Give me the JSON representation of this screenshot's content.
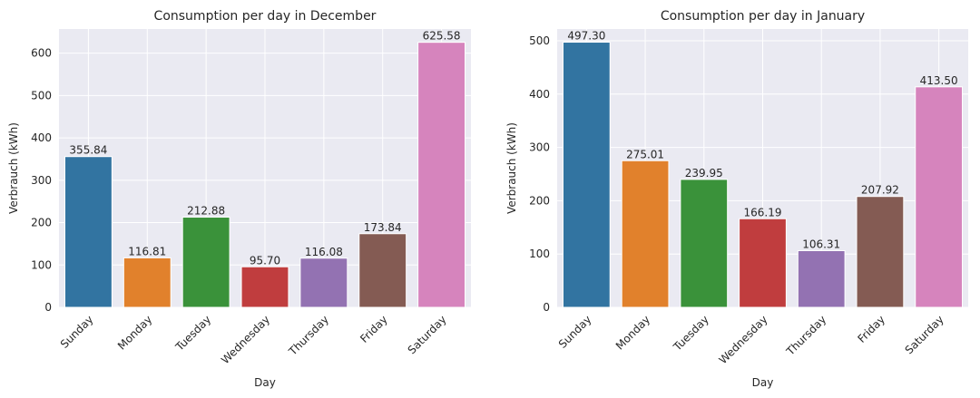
{
  "chart_data": [
    {
      "type": "bar",
      "title": "Consumption per day in December",
      "xlabel": "Day",
      "ylabel": "Verbrauch (kWh)",
      "categories": [
        "Sunday",
        "Monday",
        "Tuesday",
        "Wednesday",
        "Thursday",
        "Friday",
        "Saturday"
      ],
      "values": [
        355.84,
        116.81,
        212.88,
        95.7,
        116.08,
        173.84,
        625.58
      ],
      "value_labels": [
        "355.84",
        "116.81",
        "212.88",
        "95.70",
        "116.08",
        "173.84",
        "625.58"
      ],
      "ylim": [
        0,
        657
      ],
      "yticks": [
        0,
        100,
        200,
        300,
        400,
        500,
        600
      ],
      "grid": true
    },
    {
      "type": "bar",
      "title": "Consumption per day in January",
      "xlabel": "Day",
      "ylabel": "Verbrauch (kWh)",
      "categories": [
        "Sunday",
        "Monday",
        "Tuesday",
        "Wednesday",
        "Thursday",
        "Friday",
        "Saturday"
      ],
      "values": [
        497.3,
        275.01,
        239.95,
        166.19,
        106.31,
        207.92,
        413.5
      ],
      "value_labels": [
        "497.30",
        "275.01",
        "239.95",
        "166.19",
        "106.31",
        "207.92",
        "413.50"
      ],
      "ylim": [
        0,
        522
      ],
      "yticks": [
        0,
        100,
        200,
        300,
        400,
        500
      ],
      "grid": true
    }
  ],
  "colors": {
    "background": "#eaeaf2",
    "grid": "#ffffff",
    "bars": [
      "#3274a1",
      "#e1812c",
      "#3a923a",
      "#c03d3e",
      "#9372b2",
      "#845b53",
      "#d684bd"
    ]
  }
}
